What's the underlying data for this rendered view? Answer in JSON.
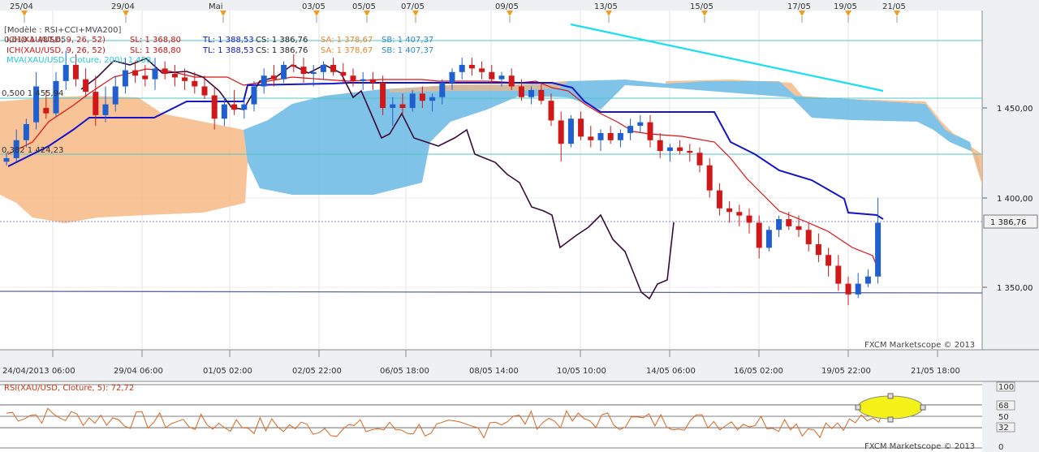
{
  "top_dates": [
    "25/04",
    "29/04",
    "Mai",
    "03/05",
    "05/05",
    "07/05",
    "09/05",
    "13/05",
    "15/05",
    "17/05",
    "19/05",
    "21/05"
  ],
  "bottom_dates": [
    "24/04/2013 06:00",
    "29/04 06:00",
    "01/05 02:00",
    "02/05 22:00",
    "06/05 18:00",
    "08/05 14:00",
    "10/05 10:00",
    "14/05 06:00",
    "16/05 02:00",
    "19/05 22:00",
    "21/05 18:00"
  ],
  "legend": {
    "model": "[Modèle : RSI+CCI+MVA200]",
    "ich1": {
      "name": "ICH(XAU/USD, 9, 26, 52)",
      "sl": "SL: 1 368,80",
      "tl": "TL: 1 388,53",
      "cs": "CS: 1 386,76",
      "sa": "SA: 1 378,67",
      "sb": "SB: 1 407,37"
    },
    "ich2": {
      "name": "ICH(XAU/USD, 9, 26, 52)",
      "sl": "SL: 1 368,80",
      "tl": "TL: 1 388,53",
      "cs": "CS: 1 386,76",
      "sa": "SA: 1 378,67",
      "sb": "SB: 1 407,37"
    },
    "mva": "MVA(XAU/USD, Cloture, 200): 1 458,"
  },
  "fib_labels": {
    "f618": "0,618 1 487,65",
    "f500": "0,500 1 455,94",
    "f382": "0,382 1 424,23"
  },
  "price_ticks": [
    "1 450,00",
    "1 400,00",
    "1 350,00"
  ],
  "current_price": "1 386,76",
  "watermark": "FXCM Marketscope © 2013",
  "rsi": {
    "label": "RSI(XAU/USD, Cloture, 5): 72,72",
    "ticks": [
      "100",
      "68",
      "50",
      "32",
      "0"
    ]
  },
  "colors": {
    "bull": "#1f5fd0",
    "bear": "#d01818",
    "tenkan": "#e01010",
    "kijun": "#1515c8",
    "chikou": "#3a0a3a",
    "senkou_a_cloud": "#6ab9e4",
    "senkou_b_cloud": "#f7b885",
    "trend": "#18dff0",
    "fib": "#4fc7c7",
    "rsi_line": "#d9651f"
  },
  "chart_data": {
    "type": "candlestick",
    "y_range": [
      1310,
      1497
    ],
    "candles": [
      [
        1420,
        1425,
        1418,
        1422
      ],
      [
        1422,
        1438,
        1420,
        1432
      ],
      [
        1432,
        1444,
        1428,
        1441
      ],
      [
        1442,
        1470,
        1438,
        1462
      ],
      [
        1450,
        1460,
        1444,
        1447
      ],
      [
        1447,
        1470,
        1445,
        1465
      ],
      [
        1465,
        1482,
        1460,
        1474
      ],
      [
        1474,
        1480,
        1462,
        1466
      ],
      [
        1466,
        1472,
        1456,
        1459
      ],
      [
        1459,
        1468,
        1440,
        1446
      ],
      [
        1446,
        1462,
        1442,
        1452
      ],
      [
        1452,
        1468,
        1448,
        1462
      ],
      [
        1462,
        1478,
        1458,
        1471
      ],
      [
        1471,
        1476,
        1464,
        1468
      ],
      [
        1468,
        1474,
        1462,
        1466
      ],
      [
        1466,
        1478,
        1460,
        1472
      ],
      [
        1472,
        1476,
        1466,
        1469
      ],
      [
        1469,
        1474,
        1462,
        1467
      ],
      [
        1467,
        1472,
        1460,
        1465
      ],
      [
        1465,
        1470,
        1458,
        1462
      ],
      [
        1462,
        1468,
        1455,
        1457
      ],
      [
        1457,
        1462,
        1438,
        1444
      ],
      [
        1444,
        1456,
        1440,
        1452
      ],
      [
        1452,
        1460,
        1446,
        1449
      ],
      [
        1449,
        1455,
        1444,
        1452
      ],
      [
        1452,
        1465,
        1448,
        1462
      ],
      [
        1462,
        1472,
        1458,
        1468
      ],
      [
        1468,
        1474,
        1462,
        1466
      ],
      [
        1466,
        1476,
        1464,
        1474
      ],
      [
        1474,
        1480,
        1470,
        1473
      ],
      [
        1473,
        1478,
        1464,
        1469
      ],
      [
        1469,
        1474,
        1462,
        1470
      ],
      [
        1470,
        1476,
        1466,
        1474
      ],
      [
        1474,
        1478,
        1468,
        1470
      ],
      [
        1470,
        1475,
        1464,
        1468
      ],
      [
        1468,
        1472,
        1462,
        1465
      ],
      [
        1465,
        1470,
        1460,
        1466
      ],
      [
        1466,
        1470,
        1460,
        1464
      ],
      [
        1464,
        1468,
        1446,
        1450
      ],
      [
        1450,
        1456,
        1440,
        1452
      ],
      [
        1452,
        1458,
        1446,
        1450
      ],
      [
        1450,
        1460,
        1448,
        1458
      ],
      [
        1458,
        1462,
        1450,
        1454
      ],
      [
        1454,
        1458,
        1448,
        1456
      ],
      [
        1456,
        1466,
        1452,
        1464
      ],
      [
        1464,
        1472,
        1460,
        1470
      ],
      [
        1470,
        1478,
        1466,
        1474
      ],
      [
        1474,
        1478,
        1468,
        1472
      ],
      [
        1472,
        1476,
        1466,
        1470
      ],
      [
        1470,
        1474,
        1464,
        1466
      ],
      [
        1466,
        1470,
        1462,
        1468
      ],
      [
        1468,
        1472,
        1460,
        1462
      ],
      [
        1462,
        1466,
        1454,
        1456
      ],
      [
        1456,
        1462,
        1452,
        1460
      ],
      [
        1460,
        1464,
        1452,
        1454
      ],
      [
        1454,
        1458,
        1440,
        1443
      ],
      [
        1443,
        1448,
        1420,
        1430
      ],
      [
        1430,
        1446,
        1428,
        1444
      ],
      [
        1444,
        1448,
        1432,
        1434
      ],
      [
        1434,
        1440,
        1428,
        1432
      ],
      [
        1432,
        1438,
        1426,
        1436
      ],
      [
        1436,
        1440,
        1430,
        1432
      ],
      [
        1432,
        1438,
        1428,
        1436
      ],
      [
        1436,
        1444,
        1432,
        1440
      ],
      [
        1440,
        1446,
        1436,
        1442
      ],
      [
        1442,
        1446,
        1428,
        1432
      ],
      [
        1432,
        1436,
        1422,
        1426
      ],
      [
        1426,
        1430,
        1420,
        1428
      ],
      [
        1428,
        1432,
        1424,
        1426
      ],
      [
        1426,
        1430,
        1420,
        1425
      ],
      [
        1425,
        1428,
        1414,
        1418
      ],
      [
        1418,
        1422,
        1400,
        1404
      ],
      [
        1404,
        1408,
        1390,
        1394
      ],
      [
        1394,
        1398,
        1386,
        1392
      ],
      [
        1392,
        1396,
        1384,
        1390
      ],
      [
        1390,
        1394,
        1380,
        1386
      ],
      [
        1386,
        1390,
        1366,
        1372
      ],
      [
        1372,
        1384,
        1370,
        1382
      ],
      [
        1382,
        1390,
        1378,
        1388
      ],
      [
        1388,
        1392,
        1382,
        1384
      ],
      [
        1384,
        1390,
        1378,
        1382
      ],
      [
        1382,
        1386,
        1370,
        1374
      ],
      [
        1374,
        1380,
        1364,
        1368
      ],
      [
        1368,
        1372,
        1356,
        1362
      ],
      [
        1362,
        1368,
        1348,
        1352
      ],
      [
        1352,
        1356,
        1340,
        1346
      ],
      [
        1346,
        1358,
        1344,
        1352
      ],
      [
        1352,
        1360,
        1350,
        1356
      ],
      [
        1356,
        1400,
        1352,
        1386
      ]
    ],
    "rsi_range": [
      0,
      100
    ],
    "rsi_levels": [
      68,
      50,
      32
    ],
    "rsi_last": 72.72
  }
}
